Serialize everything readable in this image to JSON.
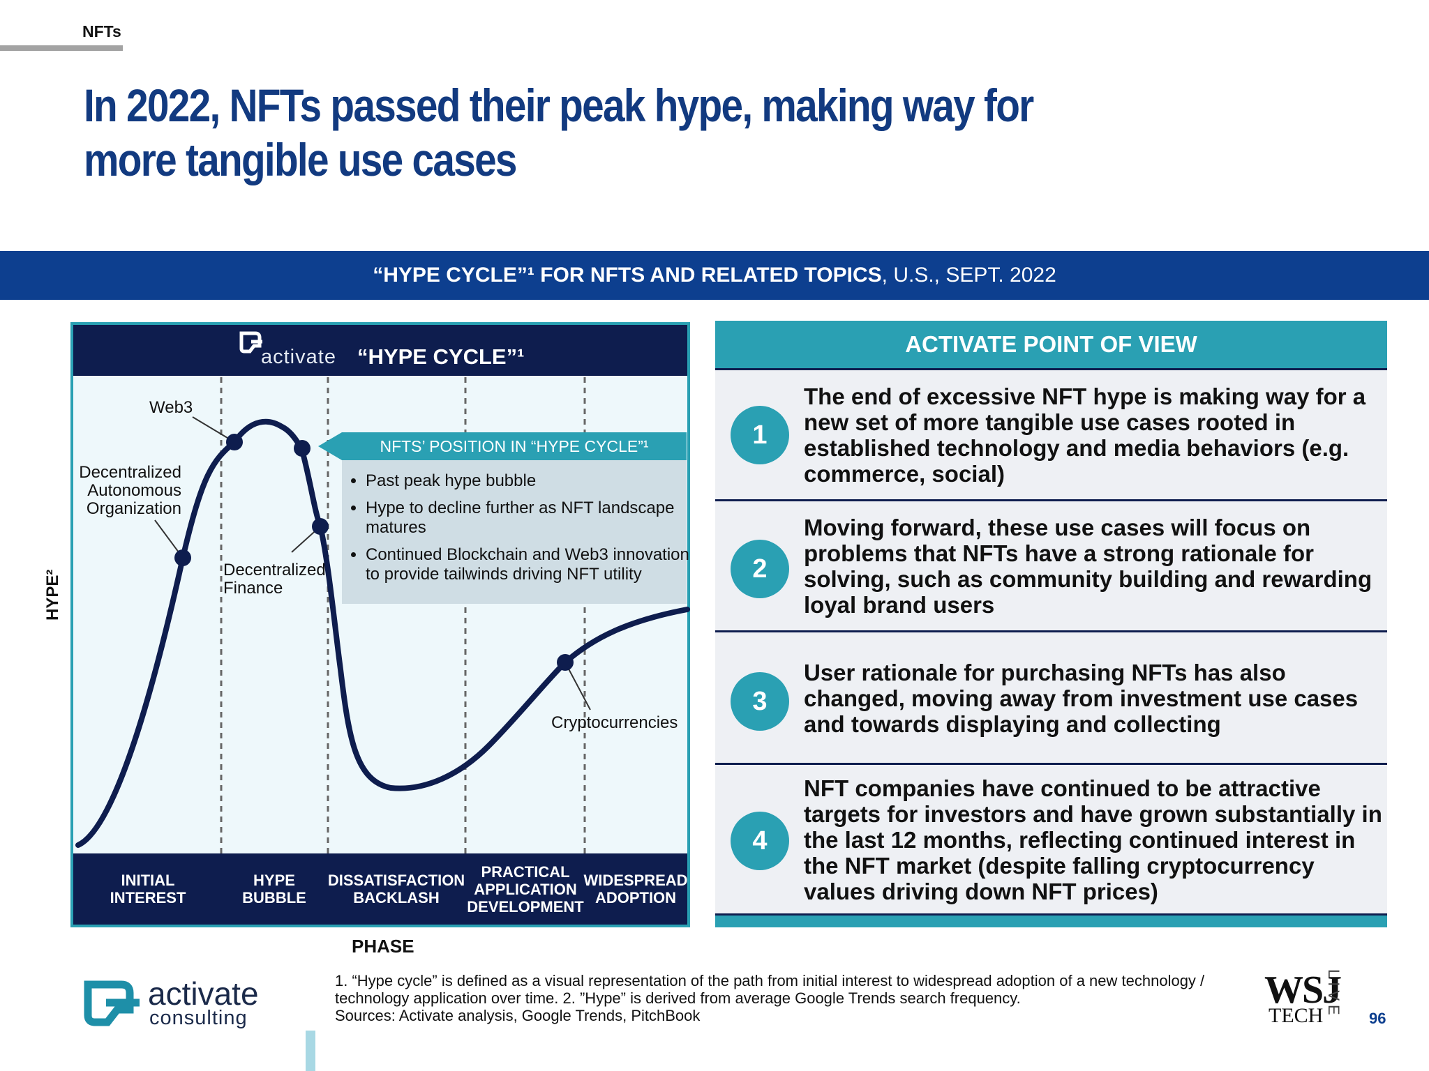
{
  "section": "NFTs",
  "title": "In 2022, NFTs passed their peak hype, making way for more tangible use cases",
  "banner": {
    "bold": "“HYPE CYCLE”¹ FOR NFTS AND RELATED TOPICS",
    "rest": ", U.S., SEPT. 2022"
  },
  "diagram": {
    "brand": "activate",
    "title": "“HYPE CYCLE”¹",
    "y_label": "HYPE²",
    "x_label": "PHASE",
    "phases": [
      "INITIAL INTEREST",
      "HYPE BUBBLE",
      "DISSATISFACTION BACKLASH",
      "PRACTICAL APPLICATION DEVELOPMENT",
      "WIDESPREAD ADOPTION"
    ],
    "points": {
      "web3": "Web3",
      "dao": "Decentralized Autonomous Organization",
      "defi": "Decentralized Finance",
      "crypto": "Cryptocurrencies"
    },
    "callout": {
      "title": "NFTS’ POSITION IN “HYPE CYCLE”¹",
      "bullets": [
        "Past peak hype bubble",
        "Hype to decline further as NFT landscape matures",
        "Continued Blockchain and Web3 innovation to provide tailwinds driving NFT utility"
      ]
    }
  },
  "pov": {
    "header": "ACTIVATE POINT OF VIEW",
    "items": [
      {
        "num": "1",
        "text": "The end of excessive NFT hype is making way for a new set of more tangible use cases rooted in established technology and media behaviors (e.g. commerce, social)"
      },
      {
        "num": "2",
        "text": "Moving forward, these use cases will focus on problems that NFTs have a strong rationale for solving, such as community building and rewarding loyal brand users"
      },
      {
        "num": "3",
        "text": "User rationale for purchasing NFTs has also changed, moving away from investment use cases and towards displaying and collecting"
      },
      {
        "num": "4",
        "text": "NFT companies have continued to be attractive targets for investors and have grown substantially in the last 12 months, reflecting continued interest in the NFT market (despite falling cryptocurrency values driving down NFT prices)"
      }
    ]
  },
  "footnote": {
    "line1": "1. “Hype cycle” is defined as a visual representation of the path from initial interest to widespread adoption of a new technology / technology application over time.  2. ”Hype” is derived from average Google Trends search frequency.",
    "line2": "Sources: Activate analysis, Google Trends, PitchBook"
  },
  "brand": {
    "name": "activate",
    "sub": "consulting"
  },
  "partner": {
    "wsj": "WSJ",
    "tech": "TECH",
    "live": "LIVE"
  },
  "page_number": "96",
  "colors": {
    "navy": "#0e1d4e",
    "blue": "#0d3f8f",
    "teal": "#2aa0b3",
    "title": "#123a80"
  }
}
